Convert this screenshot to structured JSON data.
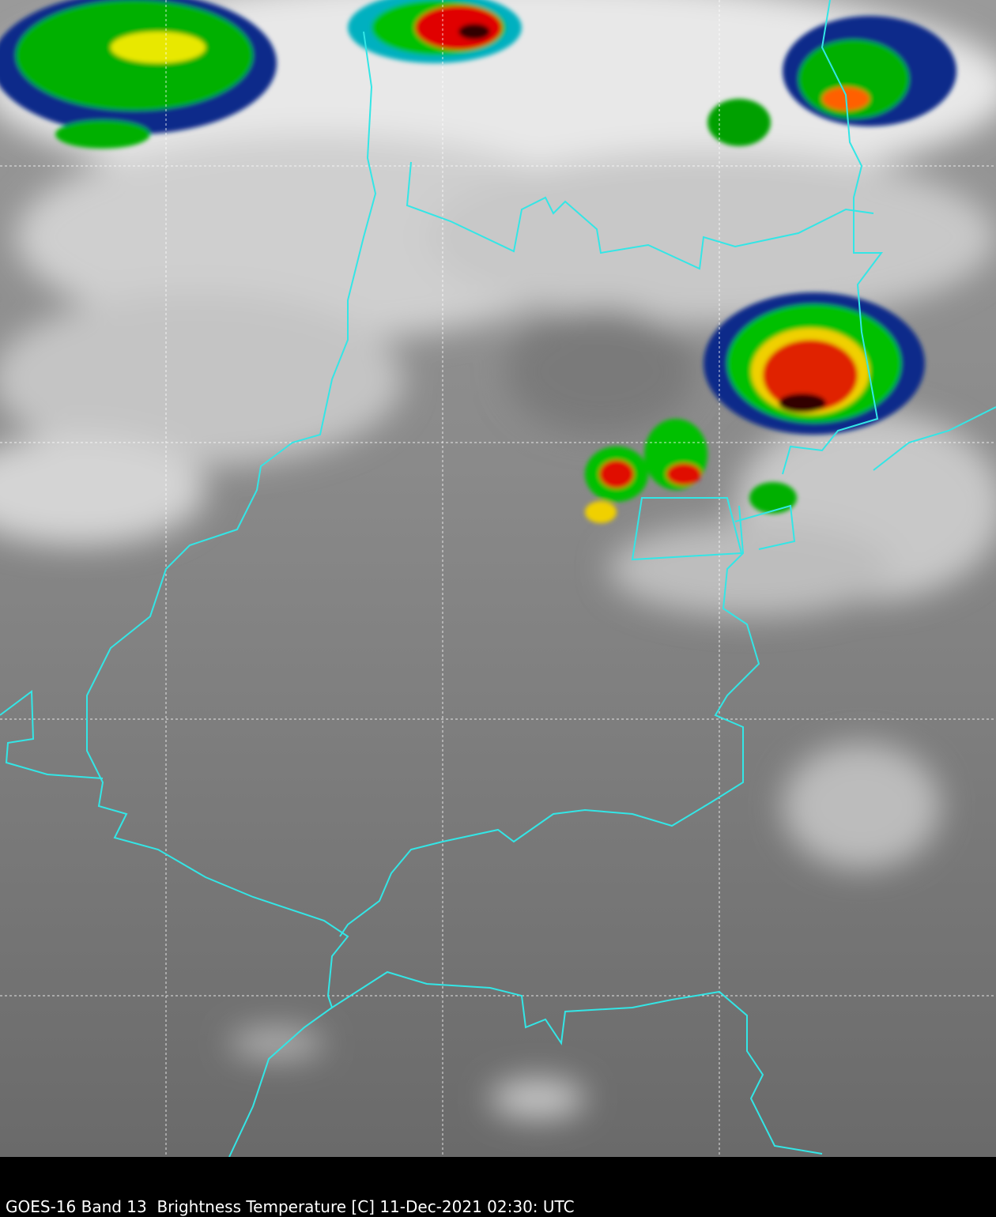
{
  "caption": "GOES-16 Band 13  Brightness Temperature [C] 11-Dec-2021 02:30: UTC",
  "colors": {
    "border": "#33e6e6",
    "background_bar": "#000000",
    "grid": "#ffffff",
    "colormap": [
      "#0a1a7a",
      "#00a0c0",
      "#00c000",
      "#f0f000",
      "#ff8000",
      "#d00000",
      "#300000"
    ]
  }
}
